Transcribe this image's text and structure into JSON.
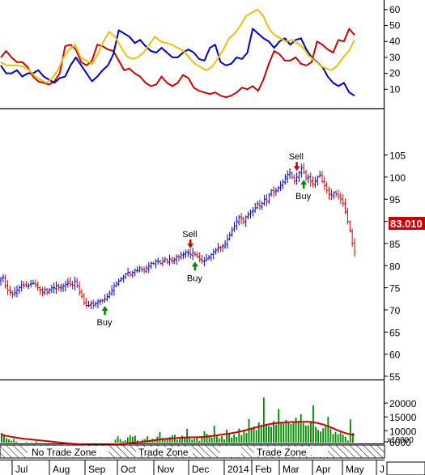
{
  "chart_data": [
    {
      "type": "line",
      "panel": "indicator",
      "ylim": [
        0,
        65
      ],
      "y_ticks": [
        "60",
        "50",
        "40",
        "30",
        "20",
        "10"
      ],
      "series": [
        {
          "color": "#d00000",
          "y": [
            30,
            34,
            30,
            27,
            27,
            24,
            18,
            15,
            14,
            13,
            15,
            20,
            37,
            38,
            35,
            27,
            25,
            28,
            38,
            37,
            35,
            34,
            28,
            22,
            23,
            20,
            18,
            14,
            12,
            13,
            18,
            14,
            12,
            14,
            19,
            17,
            11,
            9,
            8,
            7,
            8,
            6,
            5,
            6,
            8,
            11,
            10,
            12,
            9,
            16,
            26,
            34,
            32,
            28,
            28,
            30,
            26,
            25,
            27,
            40,
            38,
            35,
            33,
            41,
            40,
            48,
            44
          ]
        },
        {
          "color": "#0000c8",
          "y": [
            25,
            20,
            20,
            22,
            18,
            20,
            20,
            22,
            18,
            16,
            14,
            17,
            18,
            25,
            30,
            25,
            20,
            15,
            18,
            22,
            25,
            32,
            47,
            45,
            43,
            39,
            41,
            37,
            34,
            33,
            36,
            33,
            30,
            30,
            33,
            35,
            33,
            29,
            28,
            36,
            38,
            27,
            25,
            26,
            30,
            29,
            33,
            48,
            45,
            42,
            40,
            36,
            40,
            42,
            38,
            41,
            42,
            35,
            30,
            27,
            24,
            18,
            14,
            12,
            14,
            8,
            6
          ]
        },
        {
          "color": "#f0c000",
          "y": [
            27,
            25,
            25,
            25,
            24,
            22,
            18,
            16,
            14,
            17,
            22,
            30,
            35,
            38,
            30,
            28,
            26,
            32,
            40,
            46,
            43,
            37,
            31,
            29,
            30,
            33,
            38,
            43,
            40,
            39,
            38,
            36,
            34,
            30,
            26,
            24,
            22,
            24,
            29,
            35,
            42,
            45,
            50,
            56,
            58,
            60,
            56,
            48,
            44,
            42,
            40,
            41,
            39,
            36,
            31,
            28,
            25,
            23,
            22,
            25,
            30,
            34,
            41
          ]
        }
      ]
    },
    {
      "type": "line",
      "panel": "price",
      "ylim": [
        47,
        107
      ],
      "y_ticks": [
        "105",
        "100",
        "95",
        "90",
        "85",
        "80",
        "75",
        "70",
        "65",
        "60",
        "55"
      ],
      "last_price": "83.010",
      "up_color": "#0000c8",
      "down_color": "#d00000",
      "close": [
        77,
        77.5,
        75.5,
        74.5,
        74,
        73.5,
        74,
        74.5,
        75,
        75.5,
        75.5,
        75.5,
        75.5,
        75.8,
        76,
        75.5,
        75,
        74.5,
        74,
        74.5,
        74,
        74.5,
        75,
        75,
        75.5,
        75,
        75.2,
        75.5,
        75.8,
        76,
        75.7,
        75.6,
        76.5,
        75.5,
        74,
        73,
        71.5,
        71,
        71,
        71.5,
        71,
        71.5,
        72,
        72,
        72,
        72.5,
        73,
        73.8,
        74.5,
        75.5,
        76,
        76.5,
        77,
        77.5,
        78,
        78.5,
        78,
        78.5,
        79,
        79,
        79.5,
        79,
        79,
        79.5,
        80,
        80.5,
        80.5,
        81,
        81,
        80.5,
        81,
        81.5,
        81,
        81.5,
        81,
        81.5,
        82,
        82,
        82.5,
        82.5,
        83,
        83,
        82.5,
        83,
        82.5,
        82,
        81.5,
        81,
        81,
        81.5,
        82,
        82.5,
        83,
        83.5,
        84,
        84,
        84.5,
        85,
        86,
        87,
        88,
        89,
        90,
        91,
        90.5,
        90,
        91,
        91.5,
        92,
        92.5,
        93,
        94,
        93.5,
        94,
        95,
        94.5,
        96,
        97,
        96.5,
        97,
        97.5,
        98,
        99,
        100,
        100.5,
        101,
        100,
        99,
        100,
        101,
        102,
        101,
        100,
        100,
        99,
        98.5,
        99,
        100,
        100.5,
        99,
        98,
        97,
        96,
        96,
        96.5,
        96,
        95.5,
        95,
        94,
        92,
        90,
        88,
        85,
        83
      ]
    },
    {
      "type": "bar",
      "panel": "volume",
      "ylim": [
        0,
        24000
      ],
      "y_ticks": [
        "20000",
        "15000",
        "10000",
        "6000"
      ],
      "scale_label": "x10000",
      "ma_color": "#d00000",
      "bar_color": "#008a00",
      "values": [
        9200,
        8100,
        7300,
        6900,
        6400,
        7000,
        6100,
        5800,
        5600,
        5200,
        6000,
        5300,
        5800,
        4800,
        6200,
        4700,
        5600,
        4400,
        4900,
        5200,
        4500,
        4200,
        4600,
        4900,
        3500,
        4100,
        3800,
        4000,
        3700,
        3900,
        4800,
        4300,
        4100,
        4000,
        3800,
        3300,
        5200,
        4800,
        4600,
        5000,
        3800,
        3700,
        4400,
        5300,
        5000,
        5700,
        6800,
        8000,
        7000,
        6200,
        6600,
        7600,
        8400,
        7900,
        8200,
        6500,
        5800,
        6800,
        7000,
        8000,
        6600,
        7100,
        6500,
        7900,
        9600,
        7400,
        6800,
        7300,
        7700,
        8400,
        8600,
        6800,
        7100,
        8200,
        7500,
        10700,
        7600,
        6800,
        7200,
        7400,
        6400,
        8100,
        9800,
        8900,
        8400,
        7600,
        11800,
        8400,
        7300,
        8000,
        6900,
        10400,
        9000,
        7600,
        8700,
        7800,
        10800,
        8400,
        9800,
        9200,
        14200,
        10700,
        11500,
        10200,
        13000,
        11600,
        22000,
        12100,
        11800,
        11400,
        13500,
        12300,
        17800,
        12800,
        12600,
        13900,
        12900,
        12400,
        13300,
        14800,
        13000,
        16000,
        12800,
        11900,
        12000,
        13500,
        19200,
        11400,
        10300,
        9700,
        10900,
        11600,
        15000,
        10800,
        8800,
        9600,
        8700,
        9400,
        8700,
        7800,
        6500,
        14100,
        9200
      ],
      "ma": [
        8600,
        8000,
        7500,
        7100,
        6800,
        6500,
        6200,
        5900,
        5600,
        5350,
        5150,
        5000,
        4900,
        4950,
        5050,
        5150,
        5400,
        5700,
        6000,
        6350,
        6750,
        7100,
        7300,
        7500,
        7650,
        7650,
        7800,
        8150,
        8550,
        8950,
        9450,
        10100,
        10850,
        11650,
        12300,
        12750,
        13000,
        13150,
        13250,
        13250,
        12950,
        12250,
        11200,
        10000,
        9000,
        8400
      ]
    }
  ],
  "price_signals": [
    {
      "label": "Buy"
    },
    {
      "label": "Sell"
    },
    {
      "label": "Buy"
    },
    {
      "label": "Sell"
    },
    {
      "label": "Buy"
    }
  ],
  "zones": [
    "No Trade Zone",
    "Trade Zone",
    "Trade Zone"
  ],
  "months": [
    "Jul",
    "Aug",
    "Sep",
    "Oct",
    "Nov",
    "Dec",
    "2014",
    "Feb",
    "Mar",
    "Apr",
    "May",
    "J"
  ],
  "colors": {
    "grid_line": "#000000",
    "price_label_bg": "#d00000",
    "price_label_text": "#ffffff",
    "signal_up": "#008a00",
    "signal_down": "#d00000"
  }
}
